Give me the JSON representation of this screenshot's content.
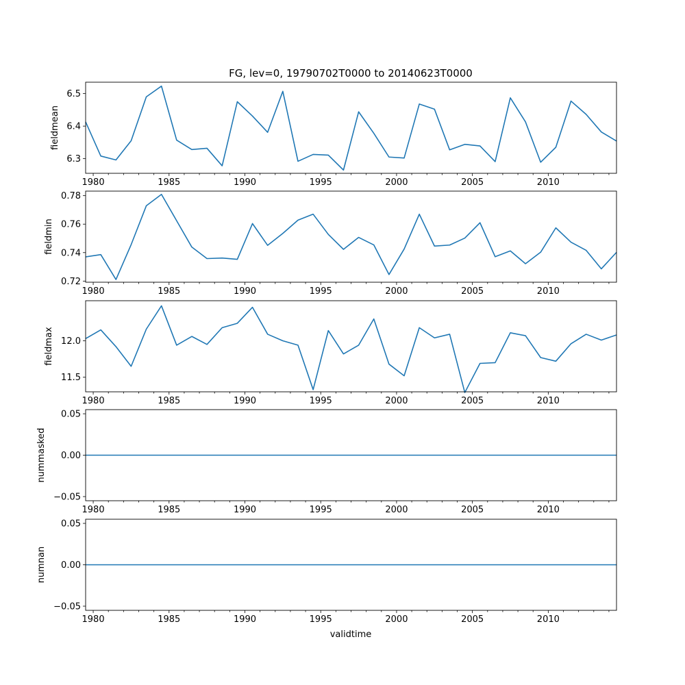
{
  "chart_data": {
    "type": "line",
    "title": "FG, lev=0, 19790702T0000 to 20140623T0000",
    "xlabel": "validtime",
    "x": [
      1979.5,
      1980.5,
      1981.5,
      1982.5,
      1983.5,
      1984.5,
      1985.5,
      1986.5,
      1987.5,
      1988.5,
      1989.5,
      1990.5,
      1991.5,
      1992.5,
      1993.5,
      1994.5,
      1995.5,
      1996.5,
      1997.5,
      1998.5,
      1999.5,
      2000.5,
      2001.5,
      2002.5,
      2003.5,
      2004.5,
      2005.5,
      2006.5,
      2007.5,
      2008.5,
      2009.5,
      2010.5,
      2011.5,
      2012.5,
      2013.5,
      2014.5
    ],
    "xlim": [
      1979.5,
      2014.5
    ],
    "xticks": [
      "1980",
      "1985",
      "1990",
      "1995",
      "2000",
      "2005",
      "2010"
    ],
    "color": "#1f77b4",
    "panels": [
      {
        "ylabel": "fieldmean",
        "ylim": [
          6.255,
          6.535
        ],
        "yticks": [
          6.3,
          6.4,
          6.5
        ],
        "ytick_labels": [
          "6.3",
          "6.4",
          "6.5"
        ],
        "values": [
          6.413,
          6.308,
          6.296,
          6.355,
          6.49,
          6.523,
          6.357,
          6.328,
          6.332,
          6.278,
          6.475,
          6.431,
          6.381,
          6.507,
          6.292,
          6.313,
          6.311,
          6.265,
          6.444,
          6.378,
          6.305,
          6.302,
          6.468,
          6.452,
          6.327,
          6.344,
          6.339,
          6.291,
          6.487,
          6.413,
          6.289,
          6.335,
          6.477,
          6.436,
          6.382,
          6.354
        ]
      },
      {
        "ylabel": "fieldmin",
        "ylim": [
          0.7192,
          0.7832
        ],
        "yticks": [
          0.72,
          0.74,
          0.76,
          0.78
        ],
        "ytick_labels": [
          "0.72",
          "0.74",
          "0.76",
          "0.78"
        ],
        "values": [
          0.737,
          0.7386,
          0.7211,
          0.7456,
          0.7729,
          0.7809,
          0.7624,
          0.7439,
          0.7358,
          0.7362,
          0.7353,
          0.7604,
          0.7451,
          0.7535,
          0.7628,
          0.767,
          0.7528,
          0.7423,
          0.7507,
          0.7454,
          0.7246,
          0.7425,
          0.767,
          0.7446,
          0.7453,
          0.7502,
          0.761,
          0.7371,
          0.7412,
          0.7322,
          0.7403,
          0.7574,
          0.7473,
          0.7416,
          0.7286,
          0.7402
        ]
      },
      {
        "ylabel": "fieldmax",
        "ylim": [
          11.3,
          12.55
        ],
        "yticks": [
          11.5,
          12.0
        ],
        "ytick_labels": [
          "11.5",
          "12.0"
        ],
        "values": [
          12.03,
          12.15,
          11.92,
          11.65,
          12.16,
          12.48,
          11.94,
          12.06,
          11.95,
          12.18,
          12.24,
          12.46,
          12.09,
          12.0,
          11.94,
          11.33,
          12.14,
          11.82,
          11.94,
          12.3,
          11.68,
          11.52,
          12.18,
          12.04,
          12.09,
          11.29,
          11.69,
          11.7,
          12.11,
          12.07,
          11.77,
          11.72,
          11.96,
          12.09,
          12.01,
          12.08
        ]
      },
      {
        "ylabel": "nummasked",
        "ylim": [
          -0.055,
          0.055
        ],
        "yticks": [
          -0.05,
          0.0,
          0.05
        ],
        "ytick_labels": [
          "−0.05",
          "0.00",
          "0.05"
        ],
        "values": [
          0,
          0,
          0,
          0,
          0,
          0,
          0,
          0,
          0,
          0,
          0,
          0,
          0,
          0,
          0,
          0,
          0,
          0,
          0,
          0,
          0,
          0,
          0,
          0,
          0,
          0,
          0,
          0,
          0,
          0,
          0,
          0,
          0,
          0,
          0,
          0
        ]
      },
      {
        "ylabel": "numnan",
        "ylim": [
          -0.055,
          0.055
        ],
        "yticks": [
          -0.05,
          0.0,
          0.05
        ],
        "ytick_labels": [
          "−0.05",
          "0.00",
          "0.05"
        ],
        "values": [
          0,
          0,
          0,
          0,
          0,
          0,
          0,
          0,
          0,
          0,
          0,
          0,
          0,
          0,
          0,
          0,
          0,
          0,
          0,
          0,
          0,
          0,
          0,
          0,
          0,
          0,
          0,
          0,
          0,
          0,
          0,
          0,
          0,
          0,
          0,
          0
        ]
      }
    ]
  }
}
